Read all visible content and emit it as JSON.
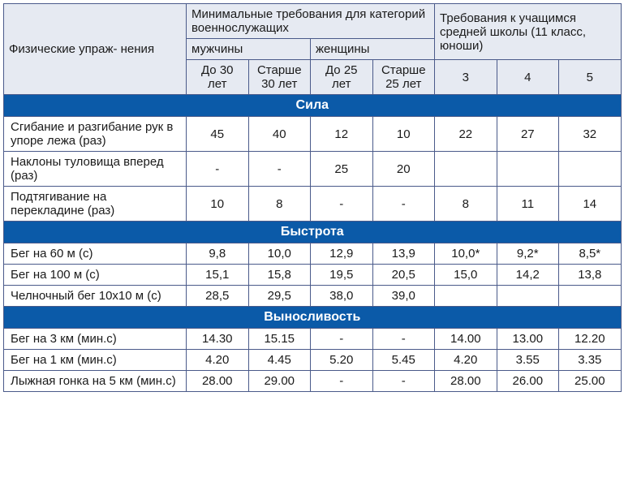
{
  "colors": {
    "header_bg": "#e6eaf2",
    "section_bg": "#0b5aa8",
    "section_fg": "#ffffff",
    "border": "#4a5a8a",
    "text": "#1a1a1a"
  },
  "header": {
    "exercises": "Физические упраж-\nнения",
    "min_req": "Минимальные требования для категорий военнослужащих",
    "school_req": "Требования к учащимся средней школы\n(11 класс, юноши)",
    "men": "мужчины",
    "women": "женщины",
    "men_u30": "До 30 лет",
    "men_o30": "Старше 30 лет",
    "women_u25": "До 25 лет",
    "women_o25": "Старше 25 лет",
    "g3": "3",
    "g4": "4",
    "g5": "5"
  },
  "sections": {
    "strength": "Сила",
    "speed": "Быстрота",
    "endurance": "Выносливость"
  },
  "rows": {
    "pushups": {
      "label": "Сгибание и разгибание рук в упоре лежа (раз)",
      "v": [
        "45",
        "40",
        "12",
        "10",
        "22",
        "27",
        "32"
      ]
    },
    "situps": {
      "label": "Наклоны туловища вперед (раз)",
      "v": [
        "-",
        "-",
        "25",
        "20",
        "",
        "",
        ""
      ]
    },
    "pullups": {
      "label": "Подтягивание на перекладине (раз)",
      "v": [
        "10",
        "8",
        "-",
        "-",
        "8",
        "11",
        "14"
      ]
    },
    "run60": {
      "label": "Бег на 60 м (с)",
      "v": [
        "9,8",
        "10,0",
        "12,9",
        "13,9",
        "10,0*",
        "9,2*",
        "8,5*"
      ]
    },
    "run100": {
      "label": "Бег на 100 м (с)",
      "v": [
        "15,1",
        "15,8",
        "19,5",
        "20,5",
        "15,0",
        "14,2",
        "13,8"
      ]
    },
    "shuttle": {
      "label": "Челночный бег 10х10 м (с)",
      "v": [
        "28,5",
        "29,5",
        "38,0",
        "39,0",
        "",
        "",
        ""
      ]
    },
    "run3k": {
      "label": "Бег на 3 км (мин.с)",
      "v": [
        "14.30",
        "15.15",
        "-",
        "-",
        "14.00",
        "13.00",
        "12.20"
      ]
    },
    "run1k": {
      "label": "Бег на 1 км (мин.с)",
      "v": [
        "4.20",
        "4.45",
        "5.20",
        "5.45",
        "4.20",
        "3.55",
        "3.35"
      ]
    },
    "ski5k": {
      "label": "Лыжная гонка на 5 км (мин.с)",
      "v": [
        "28.00",
        "29.00",
        "-",
        "-",
        "28.00",
        "26.00",
        "25.00"
      ]
    }
  }
}
